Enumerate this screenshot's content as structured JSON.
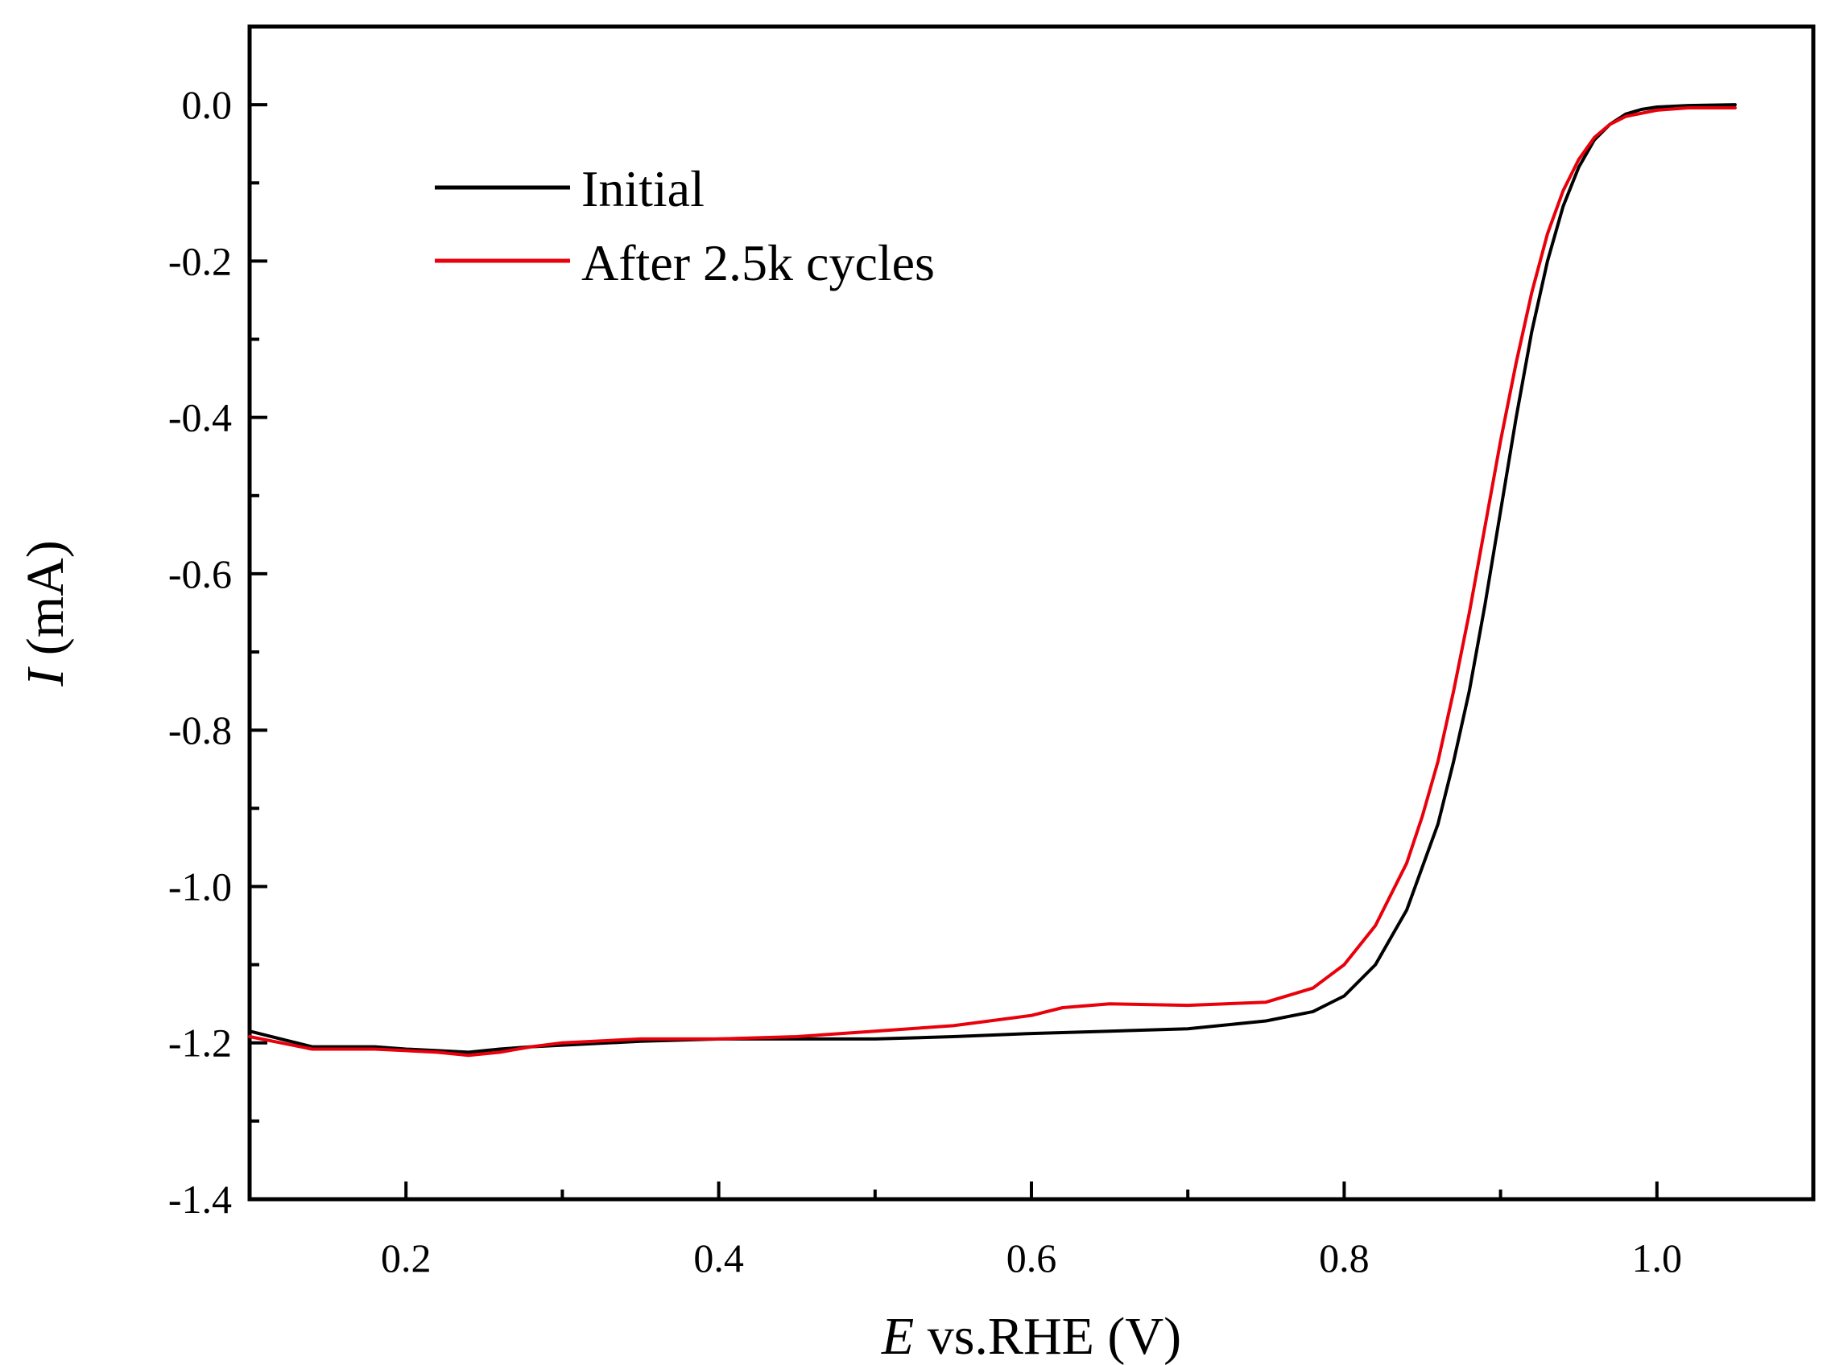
{
  "chart_data": {
    "type": "line",
    "title": "",
    "xlabel": {
      "italic": "E",
      "rest": " vs.RHE (V)"
    },
    "ylabel": {
      "italic": "I",
      "rest": " (mA)"
    },
    "xlim": [
      0.1,
      1.1
    ],
    "ylim": [
      -1.4,
      0.1
    ],
    "x_major_ticks": [
      0.2,
      0.4,
      0.6,
      0.8,
      1.0
    ],
    "x_minor_ticks": [
      0.3,
      0.5,
      0.7,
      0.9
    ],
    "x_tick_labels": [
      "0.2",
      "0.4",
      "0.6",
      "0.8",
      "1.0"
    ],
    "y_major_ticks": [
      0.0,
      -0.2,
      -0.4,
      -0.6,
      -0.8,
      -1.0,
      -1.2,
      -1.4
    ],
    "y_minor_ticks": [
      -0.1,
      -0.3,
      -0.5,
      -0.7,
      -0.9,
      -1.1,
      -1.3
    ],
    "y_tick_labels": [
      "0.0",
      "-0.2",
      "-0.4",
      "-0.6",
      "-0.8",
      "-1.0",
      "-1.2",
      "-1.4"
    ],
    "grid": false,
    "legend_position": "top-left",
    "series": [
      {
        "name": "Initial",
        "color": "#000000",
        "x": [
          0.1,
          0.12,
          0.14,
          0.16,
          0.18,
          0.2,
          0.22,
          0.24,
          0.26,
          0.28,
          0.3,
          0.35,
          0.4,
          0.45,
          0.5,
          0.55,
          0.6,
          0.65,
          0.7,
          0.75,
          0.78,
          0.8,
          0.82,
          0.84,
          0.86,
          0.87,
          0.88,
          0.89,
          0.9,
          0.91,
          0.92,
          0.93,
          0.94,
          0.95,
          0.96,
          0.97,
          0.98,
          0.99,
          1.0,
          1.02,
          1.05
        ],
        "y": [
          -1.185,
          -1.195,
          -1.205,
          -1.205,
          -1.205,
          -1.208,
          -1.21,
          -1.212,
          -1.208,
          -1.205,
          -1.203,
          -1.198,
          -1.195,
          -1.195,
          -1.195,
          -1.192,
          -1.188,
          -1.185,
          -1.182,
          -1.172,
          -1.16,
          -1.14,
          -1.1,
          -1.03,
          -0.92,
          -0.84,
          -0.75,
          -0.64,
          -0.52,
          -0.4,
          -0.29,
          -0.2,
          -0.13,
          -0.08,
          -0.045,
          -0.025,
          -0.012,
          -0.006,
          -0.003,
          -0.001,
          0.0
        ]
      },
      {
        "name": "After 2.5k cycles",
        "color": "#e8000b",
        "x": [
          0.1,
          0.12,
          0.14,
          0.16,
          0.18,
          0.2,
          0.22,
          0.24,
          0.26,
          0.28,
          0.3,
          0.35,
          0.4,
          0.45,
          0.5,
          0.55,
          0.6,
          0.62,
          0.65,
          0.7,
          0.75,
          0.78,
          0.8,
          0.82,
          0.84,
          0.85,
          0.86,
          0.87,
          0.88,
          0.89,
          0.9,
          0.91,
          0.92,
          0.93,
          0.94,
          0.95,
          0.96,
          0.97,
          0.98,
          1.0,
          1.02,
          1.05
        ],
        "y": [
          -1.192,
          -1.2,
          -1.208,
          -1.208,
          -1.208,
          -1.21,
          -1.212,
          -1.216,
          -1.212,
          -1.205,
          -1.2,
          -1.195,
          -1.195,
          -1.192,
          -1.185,
          -1.178,
          -1.165,
          -1.155,
          -1.15,
          -1.152,
          -1.148,
          -1.13,
          -1.1,
          -1.05,
          -0.97,
          -0.91,
          -0.84,
          -0.75,
          -0.65,
          -0.54,
          -0.43,
          -0.33,
          -0.24,
          -0.165,
          -0.11,
          -0.07,
          -0.042,
          -0.025,
          -0.015,
          -0.007,
          -0.004,
          -0.004
        ]
      }
    ]
  }
}
